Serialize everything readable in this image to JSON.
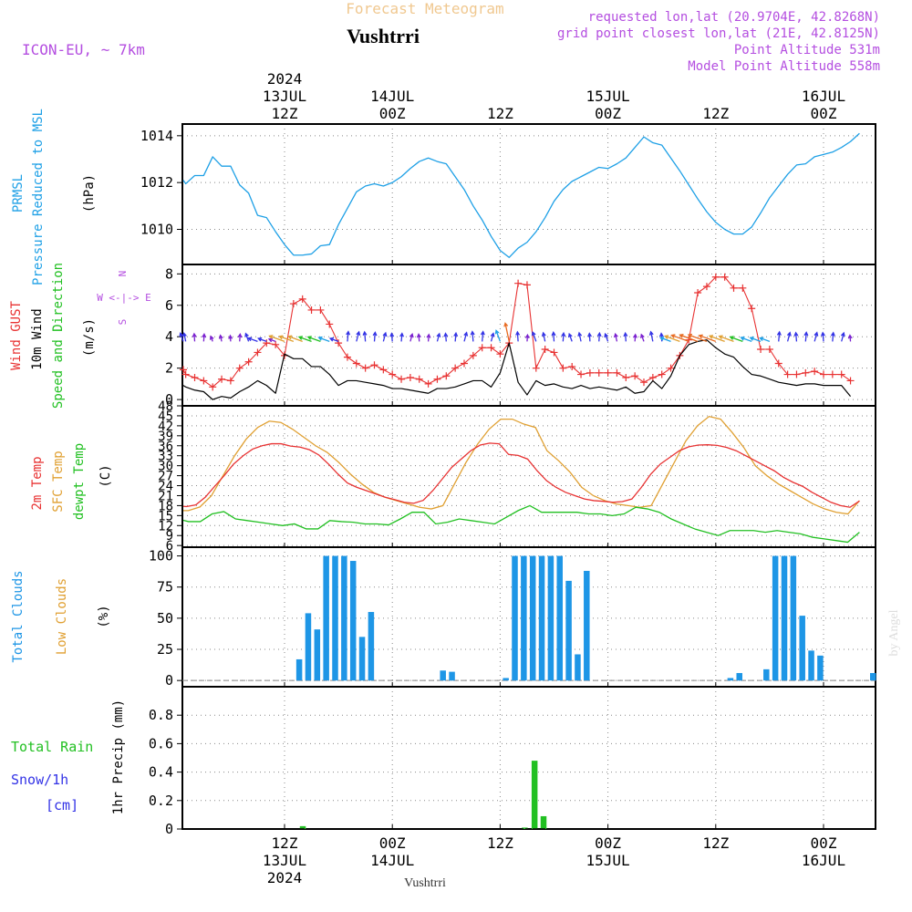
{
  "header": {
    "title_faded": "Forecast Meteogram",
    "location": "Vushtrri",
    "model": "ICON-EU, ~ 7km",
    "requested": "requested lon,lat (20.9704E, 42.8268N)",
    "grid_point": "grid point closest lon,lat (21E, 42.8125N)",
    "point_alt": "Point Altitude 531m",
    "model_alt": "Model Point Altitude 558m",
    "watermark": "by Angel",
    "footer_location": "Vushtrri"
  },
  "colors": {
    "pressure": "#1ea0e6",
    "gust": "#e83232",
    "wind": "#000000",
    "t2m": "#e83232",
    "sfc": "#e0a032",
    "dewpt": "#22c022",
    "clouds": "#1e96e6",
    "rain": "#22c022",
    "snow": "#3232e6",
    "header_purple": "#b44ee0",
    "faded": "#f0c890"
  },
  "time_axis": {
    "top_labels": [
      {
        "hour": 12,
        "lines": [
          "2024",
          "13JUL",
          "12Z"
        ]
      },
      {
        "hour": 24,
        "lines": [
          "14JUL",
          "00Z"
        ]
      },
      {
        "hour": 36,
        "lines": [
          "12Z"
        ]
      },
      {
        "hour": 48,
        "lines": [
          "15JUL",
          "00Z"
        ]
      },
      {
        "hour": 60,
        "lines": [
          "12Z"
        ]
      },
      {
        "hour": 72,
        "lines": [
          "16JUL",
          "00Z"
        ]
      }
    ],
    "bottom_labels": [
      {
        "hour": 12,
        "lines": [
          "12Z",
          "13JUL",
          "2024"
        ]
      },
      {
        "hour": 24,
        "lines": [
          "00Z",
          "14JUL"
        ]
      },
      {
        "hour": 36,
        "lines": [
          "12Z"
        ]
      },
      {
        "hour": 48,
        "lines": [
          "00Z",
          "15JUL"
        ]
      },
      {
        "hour": 60,
        "lines": [
          "12Z"
        ]
      },
      {
        "hour": 72,
        "lines": [
          "00Z",
          "16JUL"
        ]
      }
    ]
  },
  "chart_data": [
    {
      "type": "line",
      "panel": "pressure",
      "ylabel_left": [
        "PRMSL",
        "Pressure Reduced to MSL"
      ],
      "unit": "(hPa)",
      "yticks": [
        1010,
        1012,
        1014
      ],
      "ylim": [
        1008.5,
        1014.5
      ],
      "x_hours": "0..76",
      "series": [
        {
          "values": [
            1012.1,
            1011.95,
            1012.3,
            1012.3,
            1013.1,
            1012.7,
            1012.7,
            1011.9,
            1011.55,
            1010.6,
            1010.5,
            1009.9,
            1009.35,
            1008.9,
            1008.9,
            1008.95,
            1009.3,
            1009.35,
            1010.2,
            1010.9,
            1011.6,
            1011.85,
            1011.95,
            1011.85,
            1012.0,
            1012.25,
            1012.6,
            1012.9,
            1013.05,
            1012.9,
            1012.8,
            1012.25,
            1011.7,
            1011.0,
            1010.4,
            1009.7,
            1009.1,
            1008.8,
            1009.2,
            1009.45,
            1009.9,
            1010.5,
            1011.2,
            1011.7,
            1012.05,
            1012.25,
            1012.45,
            1012.65,
            1012.6,
            1012.8,
            1013.05,
            1013.5,
            1013.95,
            1013.7,
            1013.6,
            1013.05,
            1012.5,
            1011.9,
            1011.3,
            1010.75,
            1010.3,
            1010.0,
            1009.8,
            1009.8,
            1010.1,
            1010.7,
            1011.35,
            1011.85,
            1012.35,
            1012.75,
            1012.8,
            1013.1,
            1013.2,
            1013.3,
            1013.5,
            1013.75,
            1014.1
          ]
        }
      ]
    },
    {
      "type": "line",
      "panel": "wind",
      "ylabel_left": [
        "Wind GUST",
        "10m Wind",
        "Speed and Direction"
      ],
      "unit": "(m/s)",
      "compass": [
        "N",
        "W <-|-> E",
        "S"
      ],
      "yticks": [
        0,
        2,
        4,
        6,
        8
      ],
      "ylim": [
        -0.4,
        8.6
      ],
      "series": [
        {
          "name": "Wind GUST",
          "values": [
            1.9,
            1.6,
            1.4,
            1.2,
            0.8,
            1.3,
            1.2,
            2.0,
            2.4,
            3.0,
            3.6,
            3.5,
            2.8,
            6.1,
            6.4,
            5.7,
            5.7,
            4.8,
            3.6,
            2.7,
            2.3,
            2.0,
            2.2,
            1.9,
            1.6,
            1.3,
            1.4,
            1.3,
            1.0,
            1.3,
            1.5,
            2.0,
            2.3,
            2.8,
            3.3,
            3.3,
            2.9,
            3.6,
            7.4,
            7.3,
            2.0,
            3.2,
            3.0,
            2.0,
            2.1,
            1.6,
            1.7,
            1.7,
            1.7,
            1.7,
            1.4,
            1.5,
            1.1,
            1.4,
            1.6,
            2.0,
            2.8,
            3.8,
            6.8,
            7.2,
            7.8,
            7.8,
            7.1,
            7.1,
            5.8,
            3.2,
            3.2,
            2.3,
            1.6,
            1.6,
            1.7,
            1.8,
            1.6,
            1.6,
            1.6,
            1.2
          ]
        },
        {
          "name": "10m Wind",
          "values": [
            0.9,
            0.8,
            0.6,
            0.5,
            0.0,
            0.2,
            0.1,
            0.5,
            0.8,
            1.2,
            0.9,
            0.4,
            2.9,
            2.6,
            2.6,
            2.1,
            2.1,
            1.6,
            0.9,
            1.2,
            1.2,
            1.1,
            1.0,
            0.9,
            0.7,
            0.7,
            0.6,
            0.5,
            0.4,
            0.7,
            0.7,
            0.8,
            1.0,
            1.2,
            1.2,
            0.8,
            1.7,
            3.6,
            1.1,
            0.3,
            1.2,
            0.9,
            1.0,
            0.8,
            0.7,
            0.9,
            0.7,
            0.8,
            0.7,
            0.6,
            0.8,
            0.4,
            0.5,
            1.2,
            0.7,
            1.5,
            2.8,
            3.5,
            3.7,
            3.8,
            3.3,
            2.9,
            2.7,
            2.1,
            1.6,
            1.5,
            1.3,
            1.1,
            1.0,
            0.9,
            1.0,
            1.0,
            0.9,
            0.9,
            0.9,
            0.2
          ]
        }
      ]
    },
    {
      "type": "line",
      "panel": "temperature",
      "ylabel_left": [
        "2m Temp",
        "SFC Temp",
        "dewpt Temp"
      ],
      "unit": "(C)",
      "yticks": [
        6,
        9,
        12,
        15,
        18,
        21,
        24,
        27,
        30,
        33,
        36,
        39,
        42,
        45,
        48
      ],
      "ylim": [
        5.5,
        48
      ],
      "series": [
        {
          "name": "2m Temp",
          "values": [
            17.8,
            17.7,
            18.2,
            20.5,
            23.8,
            27.0,
            30.5,
            33.0,
            35.0,
            36.0,
            36.6,
            36.6,
            35.9,
            35.6,
            34.8,
            33.2,
            30.5,
            27.5,
            24.8,
            23.5,
            22.5,
            21.5,
            20.5,
            19.8,
            19.0,
            18.7,
            19.6,
            22.5,
            26.0,
            29.5,
            32.0,
            34.5,
            36.2,
            36.8,
            36.6,
            33.4,
            33.1,
            32.0,
            28.5,
            25.5,
            23.5,
            22.0,
            21.0,
            20.0,
            19.5,
            19.3,
            19.0,
            19.2,
            20.0,
            23.5,
            27.5,
            30.5,
            32.5,
            34.5,
            35.7,
            36.2,
            36.3,
            36.1,
            35.5,
            34.5,
            33.0,
            31.5,
            30.0,
            28.5,
            26.5,
            25.0,
            23.8,
            22.0,
            20.5,
            19.0,
            18.0,
            17.5,
            19.4
          ]
        },
        {
          "name": "SFC Temp",
          "values": [
            16.5,
            16.5,
            17.6,
            21.0,
            27.0,
            33.0,
            38.0,
            41.5,
            43.4,
            43.0,
            41.0,
            38.5,
            36.0,
            34.0,
            31.0,
            27.5,
            24.5,
            22.0,
            20.5,
            19.5,
            18.5,
            17.5,
            17.0,
            18.0,
            24.5,
            31.0,
            36.5,
            41.0,
            44.0,
            44.0,
            42.5,
            41.5,
            34.5,
            31.5,
            28.0,
            23.5,
            21.0,
            19.5,
            18.5,
            18.0,
            17.5,
            18.0,
            24.5,
            31.0,
            37.5,
            42.0,
            44.8,
            44.0,
            40.0,
            35.5,
            30.0,
            27.0,
            24.5,
            22.5,
            20.5,
            18.5,
            17.0,
            16.0,
            15.5,
            19.5
          ]
        },
        {
          "name": "dewpt Temp",
          "values": [
            13.6,
            13.2,
            13.2,
            15.5,
            16.2,
            14.0,
            13.5,
            13.0,
            12.5,
            12.0,
            12.5,
            11.0,
            11.0,
            13.5,
            13.2,
            13.0,
            12.5,
            12.5,
            12.2,
            14.0,
            16.0,
            16.0,
            12.5,
            13.0,
            14.0,
            13.5,
            13.0,
            12.5,
            14.5,
            16.5,
            18.0,
            16.0,
            16.0,
            16.0,
            16.0,
            15.5,
            15.5,
            15.0,
            15.5,
            17.5,
            17.0,
            16.0,
            14.0,
            12.5,
            11.0,
            10.0,
            9.0,
            10.5,
            10.5,
            10.5,
            10.0,
            10.5,
            10.0,
            9.5,
            8.5,
            8.0,
            7.5,
            7.0,
            10.0
          ]
        }
      ]
    },
    {
      "type": "bar",
      "panel": "clouds",
      "ylabel_left": [
        "Total Clouds",
        "Low Clouds"
      ],
      "unit": "(%)",
      "yticks": [
        0,
        25,
        50,
        75,
        100
      ],
      "ylim": [
        -5,
        107
      ],
      "bars": [
        {
          "hour": 13,
          "value": 17
        },
        {
          "hour": 14,
          "value": 54
        },
        {
          "hour": 15,
          "value": 41
        },
        {
          "hour": 16,
          "value": 100
        },
        {
          "hour": 17,
          "value": 100
        },
        {
          "hour": 18,
          "value": 100
        },
        {
          "hour": 19,
          "value": 96
        },
        {
          "hour": 20,
          "value": 35
        },
        {
          "hour": 21,
          "value": 55
        },
        {
          "hour": 29,
          "value": 8
        },
        {
          "hour": 30,
          "value": 7
        },
        {
          "hour": 36,
          "value": 2
        },
        {
          "hour": 37,
          "value": 100
        },
        {
          "hour": 38,
          "value": 100
        },
        {
          "hour": 39,
          "value": 100
        },
        {
          "hour": 40,
          "value": 100
        },
        {
          "hour": 41,
          "value": 100
        },
        {
          "hour": 42,
          "value": 100
        },
        {
          "hour": 43,
          "value": 80
        },
        {
          "hour": 44,
          "value": 21
        },
        {
          "hour": 45,
          "value": 88
        },
        {
          "hour": 61,
          "value": 2
        },
        {
          "hour": 62,
          "value": 6
        },
        {
          "hour": 65,
          "value": 9
        },
        {
          "hour": 66,
          "value": 100
        },
        {
          "hour": 67,
          "value": 100
        },
        {
          "hour": 68,
          "value": 100
        },
        {
          "hour": 69,
          "value": 52
        },
        {
          "hour": 70,
          "value": 24
        },
        {
          "hour": 71,
          "value": 20
        },
        {
          "hour": 77,
          "value": 6
        }
      ]
    },
    {
      "type": "bar",
      "panel": "precip",
      "ylabel_left": [
        "Total Rain",
        "Snow/1h",
        "[cm]"
      ],
      "ylabel_axis": "1hr Precip (mm)",
      "yticks": [
        0,
        0.2,
        0.4,
        0.6,
        0.8
      ],
      "ylim": [
        0,
        1.0
      ],
      "bars": [
        {
          "hour": 13.5,
          "value": 0.02
        },
        {
          "hour": 38.2,
          "value": 0.01
        },
        {
          "hour": 39.3,
          "value": 0.48
        },
        {
          "hour": 40.3,
          "value": 0.09
        }
      ]
    }
  ]
}
